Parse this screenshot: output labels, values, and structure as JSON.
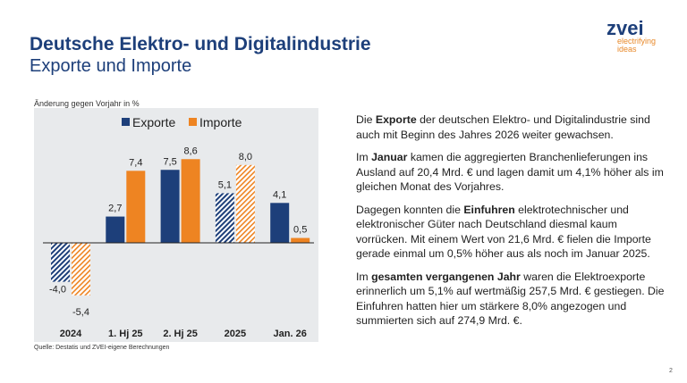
{
  "header": {
    "title": "Deutsche Elektro- und Digitalindustrie",
    "subtitle": "Exporte und Importe"
  },
  "logo": {
    "name": "zvei",
    "tagline1": "electrifying",
    "tagline2": "ideas"
  },
  "colors": {
    "exporte": "#1d3f7a",
    "importe": "#ee8422",
    "background": "#e8eaec"
  },
  "chart_data": {
    "type": "bar",
    "ylabel": "Änderung gegen Vorjahr in %",
    "categories": [
      "2024",
      "1. Hj 25",
      "2. Hj 25",
      "2025",
      "Jan. 26"
    ],
    "series": [
      {
        "name": "Exporte",
        "values": [
          -4.0,
          2.7,
          7.5,
          5.1,
          4.1
        ],
        "labels": [
          "-4,0",
          "2,7",
          "7,5",
          "5,1",
          "4,1"
        ],
        "hatched": [
          true,
          false,
          false,
          true,
          false
        ]
      },
      {
        "name": "Importe",
        "values": [
          -5.4,
          7.4,
          8.6,
          8.0,
          0.5
        ],
        "labels": [
          "-5,4",
          "7,4",
          "8,6",
          "8,0",
          "0,5"
        ],
        "hatched": [
          true,
          false,
          false,
          true,
          false
        ]
      }
    ],
    "legend": "top",
    "grid": false
  },
  "source": "Quelle: Destatis und ZVEI-eigene Berechnungen",
  "text": {
    "p1": [
      {
        "t": "Die "
      },
      {
        "t": "Exporte",
        "b": true
      },
      {
        "t": " der deutschen Elektro- und Digitalindustrie sind auch mit Beginn des Jahres 2026 weiter gewachsen."
      }
    ],
    "p2": [
      {
        "t": "Im "
      },
      {
        "t": "Januar",
        "b": true
      },
      {
        "t": " kamen die aggregierten Branchenlieferungen ins Ausland auf 20,4 Mrd. € und lagen damit um 4,1% höher als im gleichen Monat des Vorjahres."
      }
    ],
    "p3": [
      {
        "t": "Dagegen konnten die "
      },
      {
        "t": "Einfuhren",
        "b": true
      },
      {
        "t": " elektrotechnischer und elektronischer Güter nach Deutschland diesmal kaum vorrücken. Mit einem Wert von 21,6 Mrd. € fielen die Importe gerade einmal um 0,5% höher aus als noch im Januar 2025."
      }
    ],
    "p4": [
      {
        "t": "Im "
      },
      {
        "t": "gesamten vergangenen Jahr",
        "b": true
      },
      {
        "t": " waren die Elektroexporte erinnerlich um 5,1% auf wertmäßig 257,5 Mrd. € gestiegen. Die Einfuhren hatten hier um stärkere 8,0% angezogen und summierten sich auf 274,9 Mrd. €."
      }
    ]
  },
  "page_number": "2"
}
